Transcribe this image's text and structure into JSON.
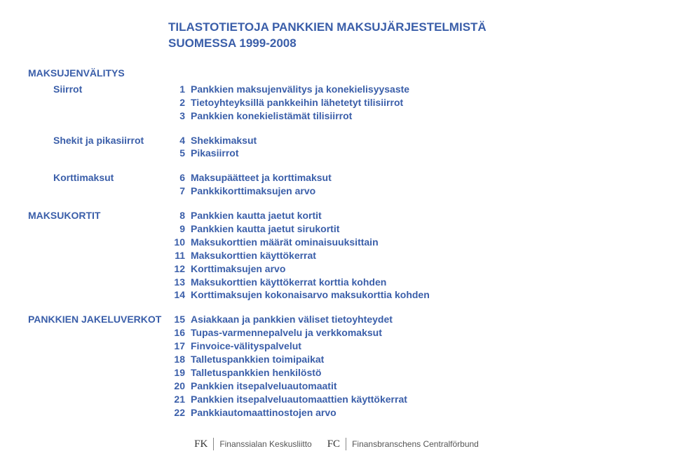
{
  "colors": {
    "heading": "#3a5ea9",
    "background": "#ffffff",
    "footer_text": "#555555"
  },
  "typography": {
    "title_fontsize_pt": 13,
    "body_fontsize_pt": 10.5,
    "font_family": "Arial",
    "weight": "bold"
  },
  "title": {
    "line1": "TILASTOTIETOJA PANKKIEN MAKSUJÄRJESTELMISTÄ",
    "line2": "SUOMESSA  1999-2008"
  },
  "sections": [
    {
      "heading": "MAKSUJENVÄLITYS",
      "groups": [
        {
          "label": "Siirrot",
          "indent": true,
          "items": [
            {
              "num": "1",
              "desc": "Pankkien maksujenvälitys ja konekielisyysaste"
            },
            {
              "num": "2",
              "desc": "Tietoyhteyksillä pankkeihin lähetetyt tilisiirrot"
            },
            {
              "num": "3",
              "desc": "Pankkien konekielistämät tilisiirrot"
            }
          ]
        },
        {
          "label": "Shekit ja pikasiirrot",
          "indent": true,
          "items": [
            {
              "num": "4",
              "desc": "Shekkimaksut"
            },
            {
              "num": "5",
              "desc": "Pikasiirrot"
            }
          ]
        },
        {
          "label": "Korttimaksut",
          "indent": true,
          "items": [
            {
              "num": "6",
              "desc": "Maksupäätteet ja korttimaksut"
            },
            {
              "num": "7",
              "desc": "Pankkikorttimaksujen arvo"
            }
          ]
        }
      ]
    },
    {
      "heading": "MAKSUKORTIT",
      "groups": [
        {
          "label": "",
          "indent": false,
          "items": [
            {
              "num": "8",
              "desc": "Pankkien kautta jaetut kortit"
            },
            {
              "num": "9",
              "desc": "Pankkien kautta jaetut sirukortit"
            },
            {
              "num": "10",
              "desc": "Maksukorttien määrät ominaisuuksittain"
            },
            {
              "num": "11",
              "desc": "Maksukorttien käyttökerrat"
            },
            {
              "num": "12",
              "desc": "Korttimaksujen arvo"
            },
            {
              "num": "13",
              "desc": "Maksukorttien käyttökerrat korttia kohden"
            },
            {
              "num": "14",
              "desc": "Korttimaksujen kokonaisarvo maksukorttia kohden"
            }
          ]
        }
      ]
    },
    {
      "heading": "PANKKIEN JAKELUVERKOT",
      "groups": [
        {
          "label": "",
          "indent": false,
          "items": [
            {
              "num": "15",
              "desc": "Asiakkaan ja pankkien väliset tietoyhteydet"
            },
            {
              "num": "16",
              "desc": "Tupas-varmennepalvelu ja verkkomaksut"
            },
            {
              "num": "17",
              "desc": "Finvoice-välityspalvelut"
            },
            {
              "num": "18",
              "desc": "Talletuspankkien toimipaikat"
            },
            {
              "num": "19",
              "desc": "Talletuspankkien henkilöstö"
            },
            {
              "num": "20",
              "desc": "Pankkien itsepalveluautomaatit"
            },
            {
              "num": "21",
              "desc": "Pankkien itsepalveluautomaattien käyttökerrat"
            },
            {
              "num": "22",
              "desc": "Pankkiautomaattinostojen arvo"
            }
          ]
        }
      ]
    }
  ],
  "footer": {
    "fk": "FK",
    "org1": "Finanssialan Keskusliitto",
    "fc": "FC",
    "org2": "Finansbranschens Centralförbund"
  }
}
